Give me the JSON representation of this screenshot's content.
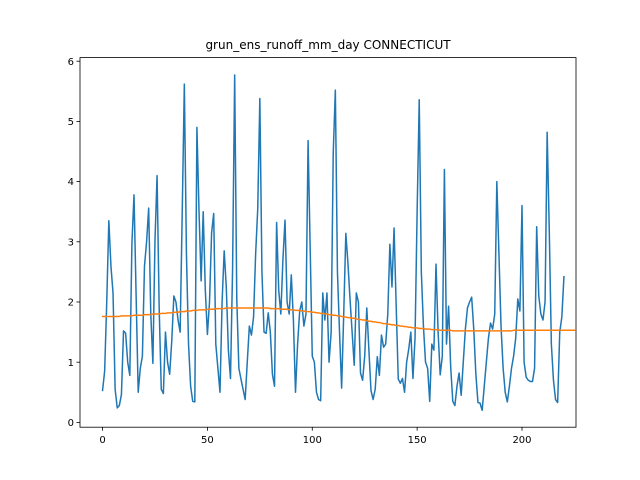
{
  "chart_data": {
    "type": "line",
    "title": "grun_ens_runoff_mm_day CONNECTICUT",
    "xlabel": "",
    "ylabel": "",
    "xlim": [
      -10.75,
      225.75
    ],
    "ylim": [
      -0.08,
      6.06
    ],
    "x_ticks": [
      0,
      50,
      100,
      150,
      200
    ],
    "y_ticks": [
      0,
      1,
      2,
      3,
      4,
      5,
      6
    ],
    "grid": false,
    "series": [
      {
        "color": "#1f77b4",
        "values": [
          0.53,
          0.85,
          2.0,
          3.35,
          2.6,
          2.15,
          0.55,
          0.24,
          0.28,
          0.46,
          1.52,
          1.48,
          1.0,
          0.78,
          2.97,
          3.78,
          2.12,
          0.5,
          0.9,
          1.1,
          2.6,
          3.0,
          3.56,
          1.8,
          0.98,
          3.02,
          4.1,
          1.9,
          0.55,
          0.48,
          1.5,
          1.0,
          0.8,
          1.35,
          2.1,
          2.0,
          1.7,
          1.5,
          3.5,
          5.62,
          2.8,
          1.3,
          0.6,
          0.35,
          0.34,
          4.9,
          3.5,
          2.35,
          3.5,
          2.2,
          1.46,
          2.0,
          3.15,
          3.47,
          1.3,
          0.9,
          0.5,
          2.0,
          2.85,
          2.25,
          1.2,
          0.73,
          2.55,
          5.77,
          2.05,
          0.9,
          0.72,
          0.55,
          0.38,
          1.0,
          1.6,
          1.45,
          1.75,
          2.8,
          3.55,
          5.38,
          2.5,
          1.5,
          1.48,
          1.82,
          1.5,
          0.8,
          0.6,
          3.32,
          2.2,
          1.8,
          2.7,
          3.36,
          2.0,
          1.8,
          2.45,
          1.7,
          0.5,
          1.3,
          1.85,
          2.0,
          1.6,
          1.8,
          4.68,
          2.9,
          1.1,
          1.0,
          0.5,
          0.38,
          0.36,
          2.15,
          1.7,
          2.15,
          1.0,
          1.5,
          4.48,
          5.52,
          2.5,
          1.5,
          0.57,
          1.8,
          3.14,
          2.65,
          2.05,
          1.5,
          0.95,
          2.15,
          2.0,
          0.82,
          0.7,
          1.1,
          1.9,
          1.2,
          0.53,
          0.38,
          0.55,
          1.09,
          0.78,
          1.45,
          1.25,
          1.3,
          1.8,
          2.96,
          2.25,
          3.23,
          1.95,
          0.72,
          0.65,
          0.73,
          0.5,
          1.0,
          1.22,
          1.5,
          0.73,
          1.4,
          3.5,
          5.36,
          2.5,
          1.6,
          1.0,
          0.9,
          0.35,
          1.3,
          1.2,
          2.63,
          1.5,
          0.79,
          1.1,
          4.2,
          1.3,
          1.93,
          0.92,
          0.35,
          0.28,
          0.6,
          0.82,
          0.45,
          1.0,
          1.55,
          1.9,
          2.0,
          2.08,
          1.55,
          0.8,
          0.33,
          0.32,
          0.2,
          0.6,
          1.0,
          1.4,
          1.65,
          1.55,
          1.8,
          4.0,
          2.8,
          1.6,
          0.9,
          0.5,
          0.34,
          0.6,
          0.9,
          1.1,
          1.4,
          2.05,
          1.85,
          3.6,
          1.0,
          0.75,
          0.7,
          0.68,
          0.68,
          0.9,
          3.25,
          2.1,
          1.8,
          1.7,
          2.0,
          4.82,
          3.2,
          1.3,
          0.7,
          0.38,
          0.33,
          1.5,
          1.75,
          2.42
        ]
      },
      {
        "color": "#ff7f0e",
        "values": [
          1.76,
          1.76,
          1.76,
          1.76,
          1.76,
          1.76,
          1.76,
          1.76,
          1.76,
          1.77,
          1.77,
          1.77,
          1.77,
          1.77,
          1.77,
          1.78,
          1.78,
          1.78,
          1.78,
          1.78,
          1.79,
          1.79,
          1.79,
          1.79,
          1.8,
          1.8,
          1.8,
          1.8,
          1.81,
          1.81,
          1.81,
          1.82,
          1.82,
          1.82,
          1.83,
          1.83,
          1.83,
          1.84,
          1.84,
          1.84,
          1.85,
          1.85,
          1.85,
          1.86,
          1.86,
          1.86,
          1.87,
          1.87,
          1.87,
          1.87,
          1.88,
          1.88,
          1.88,
          1.88,
          1.89,
          1.89,
          1.89,
          1.89,
          1.89,
          1.9,
          1.9,
          1.9,
          1.9,
          1.9,
          1.9,
          1.9,
          1.9,
          1.9,
          1.9,
          1.9,
          1.9,
          1.9,
          1.9,
          1.9,
          1.9,
          1.9,
          1.9,
          1.9,
          1.9,
          1.9,
          1.89,
          1.89,
          1.89,
          1.89,
          1.89,
          1.88,
          1.88,
          1.88,
          1.88,
          1.87,
          1.87,
          1.87,
          1.86,
          1.86,
          1.86,
          1.85,
          1.85,
          1.84,
          1.84,
          1.84,
          1.83,
          1.83,
          1.82,
          1.82,
          1.81,
          1.81,
          1.8,
          1.8,
          1.79,
          1.79,
          1.78,
          1.78,
          1.77,
          1.77,
          1.76,
          1.75,
          1.75,
          1.74,
          1.74,
          1.73,
          1.73,
          1.72,
          1.71,
          1.71,
          1.7,
          1.7,
          1.69,
          1.68,
          1.68,
          1.67,
          1.67,
          1.66,
          1.66,
          1.65,
          1.64,
          1.64,
          1.63,
          1.63,
          1.62,
          1.62,
          1.61,
          1.61,
          1.6,
          1.6,
          1.59,
          1.59,
          1.58,
          1.58,
          1.57,
          1.57,
          1.57,
          1.56,
          1.56,
          1.56,
          1.55,
          1.55,
          1.55,
          1.54,
          1.54,
          1.54,
          1.54,
          1.53,
          1.53,
          1.53,
          1.53,
          1.53,
          1.53,
          1.52,
          1.52,
          1.52,
          1.52,
          1.52,
          1.52,
          1.52,
          1.52,
          1.52,
          1.52,
          1.52,
          1.52,
          1.52,
          1.52,
          1.52,
          1.52,
          1.52,
          1.52,
          1.52,
          1.52,
          1.52,
          1.52,
          1.52,
          1.52,
          1.52,
          1.52,
          1.52,
          1.52,
          1.52,
          1.53,
          1.53,
          1.53,
          1.53,
          1.53,
          1.53,
          1.53,
          1.53,
          1.53,
          1.53,
          1.53,
          1.53,
          1.53,
          1.53,
          1.53,
          1.53,
          1.53,
          1.53,
          1.53,
          1.53,
          1.53,
          1.53,
          1.53,
          1.53,
          1.53,
          1.53,
          1.53,
          1.53,
          1.53,
          1.53
        ]
      }
    ]
  }
}
